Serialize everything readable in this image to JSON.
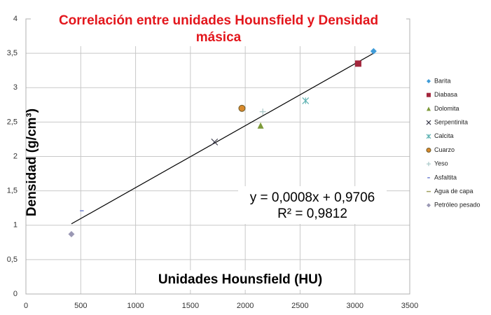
{
  "chart_data": {
    "type": "scatter",
    "title": [
      "Correlación entre unidades Hounsfield y Densidad",
      "másica"
    ],
    "xlabel": "Unidades Hounsfield (HU)",
    "ylabel": "Densidad (g/cm³)",
    "xlim": [
      0,
      3500
    ],
    "xticks": [
      0,
      500,
      1000,
      1500,
      2000,
      2500,
      3000,
      3500
    ],
    "ylim": [
      0,
      4
    ],
    "yticks": [
      0,
      {
        "value": 0.5,
        "label": "0,5"
      },
      1,
      {
        "value": 1.5,
        "label": "1,5"
      },
      2,
      {
        "value": 2.5,
        "label": "2,5"
      },
      3,
      {
        "value": 3.5,
        "label": "3,5"
      },
      4
    ],
    "grid": true,
    "legend": "right",
    "series": [
      {
        "name": "Barita",
        "color": "#3f9bd8",
        "marker": "diamond",
        "x": [
          3170
        ],
        "values": [
          3.53
        ]
      },
      {
        "name": "Diabasa",
        "color": "#a3263c",
        "marker": "square",
        "x": [
          3030
        ],
        "values": [
          3.35
        ]
      },
      {
        "name": "Dolomita",
        "color": "#7d9a3a",
        "marker": "triangle",
        "x": [
          2140
        ],
        "values": [
          2.45
        ]
      },
      {
        "name": "Serpentinita",
        "color": "#3a3a4a",
        "marker": "x",
        "x": [
          1720
        ],
        "values": [
          2.21
        ]
      },
      {
        "name": "Calcita",
        "color": "#5fb3b3",
        "marker": "star",
        "x": [
          2550
        ],
        "values": [
          2.81
        ]
      },
      {
        "name": "Cuarzo",
        "color": "#d8892c",
        "marker": "circle",
        "x": [
          1970
        ],
        "values": [
          2.7
        ]
      },
      {
        "name": "Yeso",
        "color": "#a8c8c8",
        "marker": "plus",
        "x": [
          2160
        ],
        "values": [
          2.65
        ]
      },
      {
        "name": "Asfaltita",
        "color": "#6f7fd0",
        "marker": "dash",
        "x": [
          510
        ],
        "values": [
          1.21
        ]
      },
      {
        "name": "Agua de capa",
        "color": "#a0a060",
        "marker": "line",
        "x": [],
        "values": []
      },
      {
        "name": "Petróleo pesado",
        "color": "#9a98b4",
        "marker": "diamond",
        "x": [
          415
        ],
        "values": [
          0.87
        ]
      }
    ],
    "trendline": {
      "x": [
        415,
        3170
      ],
      "values": [
        1.02,
        3.5
      ],
      "equation": "y = 0,0008x + 0,9706",
      "r2": "R² = 0,9812"
    }
  }
}
